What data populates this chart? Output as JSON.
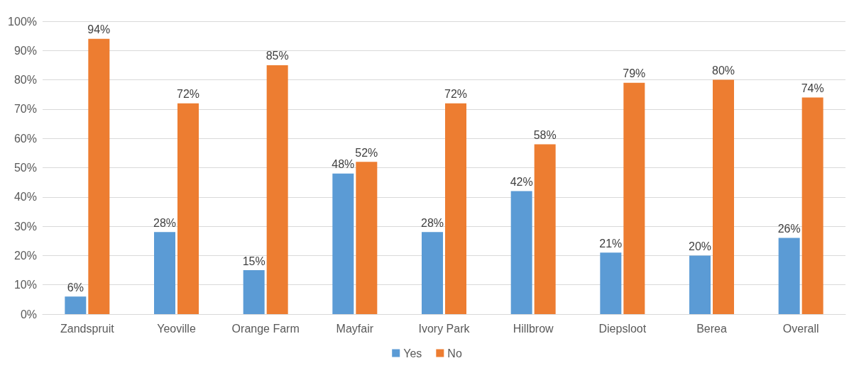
{
  "chart_data": {
    "type": "bar",
    "categories": [
      "Zandspruit",
      "Yeoville",
      "Orange Farm",
      "Mayfair",
      "Ivory Park",
      "Hillbrow",
      "Diepsloot",
      "Berea",
      "Overall"
    ],
    "series": [
      {
        "name": "Yes",
        "color": "#5b9bd5",
        "values": [
          6,
          28,
          15,
          48,
          28,
          42,
          21,
          20,
          26
        ],
        "value_labels": [
          "6%",
          "28%",
          "15%",
          "48%",
          "28%",
          "42%",
          "21%",
          "20%",
          "26%"
        ]
      },
      {
        "name": "No",
        "color": "#ed7d31",
        "values": [
          94,
          72,
          85,
          52,
          72,
          58,
          79,
          80,
          74
        ],
        "value_labels": [
          "94%",
          "72%",
          "85%",
          "52%",
          "72%",
          "58%",
          "79%",
          "80%",
          "74%"
        ]
      }
    ],
    "ylim": [
      0,
      100
    ],
    "yticks": [
      {
        "value": 0,
        "label": "0%"
      },
      {
        "value": 10,
        "label": "10%"
      },
      {
        "value": 20,
        "label": "20%"
      },
      {
        "value": 30,
        "label": "30%"
      },
      {
        "value": 40,
        "label": "40%"
      },
      {
        "value": 50,
        "label": "50%"
      },
      {
        "value": 60,
        "label": "60%"
      },
      {
        "value": 70,
        "label": "70%"
      },
      {
        "value": 80,
        "label": "80%"
      },
      {
        "value": 90,
        "label": "90%"
      },
      {
        "value": 100,
        "label": "100%"
      }
    ],
    "grid": "y",
    "legend": "bottom"
  }
}
